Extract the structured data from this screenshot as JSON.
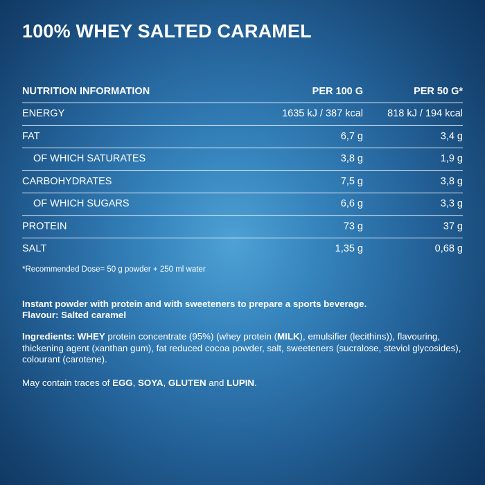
{
  "title": "100% WHEY SALTED CARAMEL",
  "table": {
    "headers": [
      "NUTRITION INFORMATION",
      "PER 100 G",
      "PER 50 G*"
    ],
    "rows": [
      {
        "label": "ENERGY",
        "per100": "1635 kJ / 387 kcal",
        "per50": "818 kJ / 194 kcal",
        "sub": false
      },
      {
        "label": "FAT",
        "per100": "6,7 g",
        "per50": "3,4 g",
        "sub": false
      },
      {
        "label": "OF WHICH SATURATES",
        "per100": "3,8 g",
        "per50": "1,9 g",
        "sub": true
      },
      {
        "label": "CARBOHYDRATES",
        "per100": "7,5 g",
        "per50": "3,8 g",
        "sub": false
      },
      {
        "label": "OF WHICH SUGARS",
        "per100": "6,6 g",
        "per50": "3,3 g",
        "sub": true
      },
      {
        "label": "PROTEIN",
        "per100": "73 g",
        "per50": "37 g",
        "sub": false
      },
      {
        "label": "SALT",
        "per100": "1,35 g",
        "per50": "0,68 g",
        "sub": false
      }
    ]
  },
  "footnote": "*Recommended Dose= 50 g powder + 250 ml water",
  "description": {
    "line1": "Instant powder with protein and with sweeteners to prepare a sports beverage.",
    "line2": "Flavour: Salted caramel"
  },
  "ingredients": {
    "label": "Ingredients:",
    "whey": "WHEY",
    "part1": " protein concentrate (95%) (whey protein (",
    "milk": "MILK",
    "part2": "), emulsifier (lecithins)), flavouring, thickening agent (xanthan gum), fat reduced cocoa powder, salt, sweeteners (sucralose, steviol glycosides), colourant (carotene)."
  },
  "traces": {
    "prefix": "May contain traces of ",
    "egg": "EGG",
    "sep1": ", ",
    "soya": "SOYA",
    "sep2": ", ",
    "gluten": "GLUTEN",
    "and": " and ",
    "lupin": "LUPIN",
    "end": "."
  },
  "colors": {
    "background_center": "#4ea2d4",
    "background_edge": "#0f3561",
    "text": "#ffffff"
  }
}
